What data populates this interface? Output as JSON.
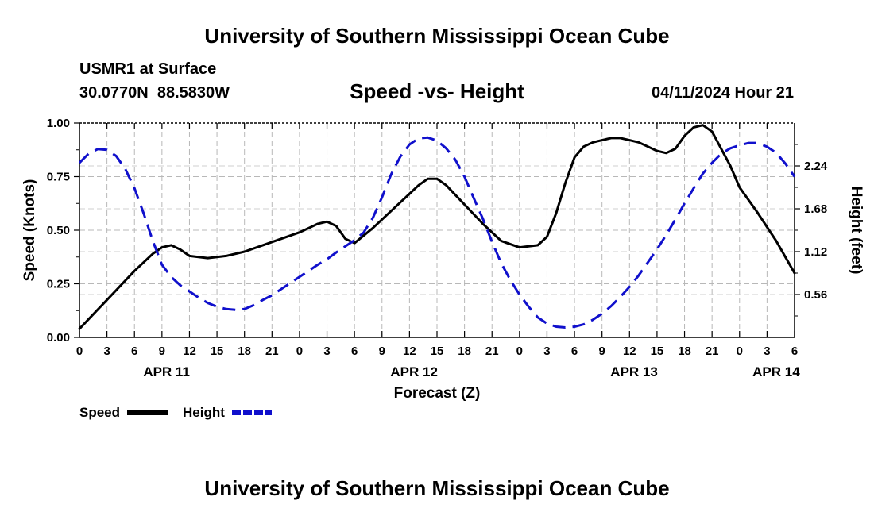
{
  "page": {
    "top_title": "University of Southern Mississippi Ocean Cube",
    "bottom_title": "University of Southern Mississippi Ocean Cube",
    "station": "USMR1 at Surface",
    "coordinates": "30.0770N  88.5830W",
    "chart_title": "Speed -vs- Height",
    "timestamp": "04/11/2024 Hour 21"
  },
  "chart_data": {
    "type": "line",
    "title": "Speed -vs- Height",
    "xlabel": "Forecast (Z)",
    "ylabel": "Speed (Knots)",
    "y2label": "Height (feet)",
    "xlim": [
      0,
      78
    ],
    "ylim": [
      0,
      1.0
    ],
    "y2lim": [
      0,
      2.8
    ],
    "grid": true,
    "x_ticks": [
      0,
      3,
      6,
      9,
      12,
      15,
      18,
      21,
      24,
      27,
      30,
      33,
      36,
      39,
      42,
      45,
      48,
      51,
      54,
      57,
      60,
      63,
      66,
      69,
      72,
      75,
      78
    ],
    "x_tick_labels": [
      "0",
      "3",
      "6",
      "9",
      "12",
      "15",
      "18",
      "21",
      "0",
      "3",
      "6",
      "9",
      "12",
      "15",
      "18",
      "21",
      "0",
      "3",
      "6",
      "9",
      "12",
      "15",
      "18",
      "21",
      "0",
      "3",
      "6"
    ],
    "y_ticks": [
      0,
      0.25,
      0.5,
      0.75,
      1.0
    ],
    "y_tick_labels": [
      "0.00",
      "0.25",
      "0.50",
      "0.75",
      "1.00"
    ],
    "y2_ticks": [
      0.56,
      1.12,
      1.68,
      2.24
    ],
    "y2_tick_labels": [
      "0.56",
      "1.12",
      "1.68",
      "2.24"
    ],
    "date_labels": [
      {
        "x": 9.5,
        "label": "APR 11"
      },
      {
        "x": 36.5,
        "label": "APR 12"
      },
      {
        "x": 60.5,
        "label": "APR 13"
      },
      {
        "x": 76,
        "label": "APR 14"
      }
    ],
    "legend": [
      {
        "name": "Speed",
        "color": "#000000",
        "dash": "solid"
      },
      {
        "name": "Height",
        "color": "#1010cc",
        "dash": "dashed"
      }
    ],
    "series": [
      {
        "name": "Speed",
        "axis": "left",
        "color": "#000000",
        "x": [
          0,
          2,
          4,
          6,
          8,
          9,
          10,
          11,
          12,
          14,
          16,
          18,
          20,
          22,
          24,
          25,
          26,
          27,
          28,
          29,
          30,
          32,
          34,
          36,
          37,
          38,
          39,
          40,
          42,
          44,
          46,
          48,
          50,
          51,
          52,
          53,
          54,
          55,
          56,
          57,
          58,
          59,
          60,
          61,
          62,
          63,
          64,
          65,
          66,
          67,
          68,
          69,
          70,
          71,
          72,
          74,
          76,
          78
        ],
        "values": [
          0.04,
          0.13,
          0.22,
          0.31,
          0.39,
          0.42,
          0.43,
          0.41,
          0.38,
          0.37,
          0.38,
          0.4,
          0.43,
          0.46,
          0.49,
          0.51,
          0.53,
          0.54,
          0.52,
          0.46,
          0.44,
          0.51,
          0.59,
          0.67,
          0.71,
          0.74,
          0.74,
          0.71,
          0.62,
          0.53,
          0.45,
          0.42,
          0.43,
          0.47,
          0.58,
          0.72,
          0.84,
          0.89,
          0.91,
          0.92,
          0.93,
          0.93,
          0.92,
          0.91,
          0.89,
          0.87,
          0.86,
          0.88,
          0.94,
          0.98,
          0.99,
          0.96,
          0.88,
          0.8,
          0.7,
          0.58,
          0.45,
          0.3
        ]
      },
      {
        "name": "Height",
        "axis": "right",
        "color": "#1010cc",
        "x": [
          0,
          1,
          2,
          3,
          4,
          5,
          6,
          7,
          8,
          9,
          10,
          11,
          12,
          13,
          14,
          15,
          16,
          17,
          18,
          19,
          20,
          21,
          22,
          23,
          24,
          25,
          26,
          27,
          28,
          29,
          30,
          31,
          32,
          33,
          34,
          35,
          36,
          37,
          38,
          39,
          40,
          41,
          42,
          43,
          44,
          45,
          46,
          47,
          48,
          49,
          50,
          51,
          52,
          53,
          54,
          55,
          56,
          57,
          58,
          59,
          60,
          61,
          62,
          63,
          64,
          65,
          66,
          67,
          68,
          69,
          70,
          71,
          72,
          73,
          74,
          75,
          76,
          77,
          78
        ],
        "values": [
          2.28,
          2.4,
          2.46,
          2.45,
          2.37,
          2.2,
          1.95,
          1.62,
          1.26,
          0.95,
          0.79,
          0.68,
          0.6,
          0.52,
          0.45,
          0.4,
          0.37,
          0.36,
          0.37,
          0.42,
          0.49,
          0.55,
          0.63,
          0.71,
          0.79,
          0.87,
          0.95,
          1.02,
          1.11,
          1.19,
          1.27,
          1.37,
          1.56,
          1.83,
          2.13,
          2.36,
          2.52,
          2.6,
          2.61,
          2.57,
          2.47,
          2.32,
          2.1,
          1.82,
          1.55,
          1.25,
          0.97,
          0.75,
          0.56,
          0.4,
          0.26,
          0.18,
          0.14,
          0.13,
          0.14,
          0.17,
          0.23,
          0.31,
          0.41,
          0.53,
          0.66,
          0.81,
          0.98,
          1.15,
          1.34,
          1.54,
          1.75,
          1.95,
          2.14,
          2.28,
          2.4,
          2.47,
          2.51,
          2.54,
          2.54,
          2.49,
          2.41,
          2.27,
          2.1
        ]
      }
    ]
  }
}
